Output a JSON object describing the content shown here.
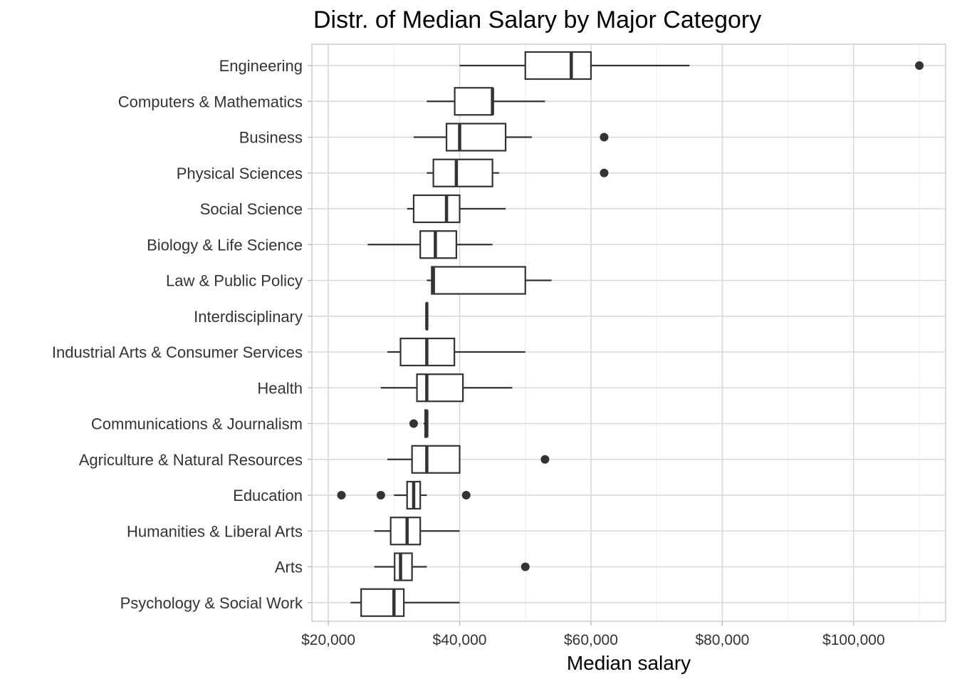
{
  "chart_data": {
    "type": "boxplot",
    "orientation": "horizontal",
    "title": "Distr. of Median Salary by Major Category",
    "xlabel": "Median salary",
    "ylabel": "",
    "xlim": [
      17500,
      114000
    ],
    "x_ticks": [
      20000,
      40000,
      60000,
      80000,
      100000
    ],
    "x_tick_labels": [
      "$20,000",
      "$40,000",
      "$60,000",
      "$80,000",
      "$100,000"
    ],
    "grid": true,
    "legend": "none",
    "colors": {
      "box": "#333333",
      "fill": "#ffffff",
      "grid": "#d9d9d9",
      "panel_border": "#b3b3b3"
    },
    "categories": [
      "Engineering",
      "Computers & Mathematics",
      "Business",
      "Physical Sciences",
      "Social Science",
      "Biology & Life Science",
      "Law & Public Policy",
      "Interdisciplinary",
      "Industrial Arts & Consumer Services",
      "Health",
      "Communications & Journalism",
      "Agriculture & Natural Resources",
      "Education",
      "Humanities & Liberal Arts",
      "Arts",
      "Psychology & Social Work"
    ],
    "boxes": [
      {
        "category": "Engineering",
        "whisker_low": 40000,
        "q1": 50000,
        "median": 57000,
        "q3": 60000,
        "whisker_high": 75000,
        "outliers": [
          110000
        ]
      },
      {
        "category": "Computers & Mathematics",
        "whisker_low": 35000,
        "q1": 39250,
        "median": 45000,
        "q3": 45000,
        "whisker_high": 53000,
        "outliers": []
      },
      {
        "category": "Business",
        "whisker_low": 33000,
        "q1": 38000,
        "median": 40000,
        "q3": 47000,
        "whisker_high": 51000,
        "outliers": [
          62000
        ]
      },
      {
        "category": "Physical Sciences",
        "whisker_low": 35000,
        "q1": 36000,
        "median": 39500,
        "q3": 45000,
        "whisker_high": 46000,
        "outliers": [
          62000
        ]
      },
      {
        "category": "Social Science",
        "whisker_low": 32000,
        "q1": 33000,
        "median": 38000,
        "q3": 40000,
        "whisker_high": 47000,
        "outliers": []
      },
      {
        "category": "Biology & Life Science",
        "whisker_low": 26000,
        "q1": 34000,
        "median": 36300,
        "q3": 39500,
        "whisker_high": 45000,
        "outliers": []
      },
      {
        "category": "Law & Public Policy",
        "whisker_low": 35000,
        "q1": 35750,
        "median": 36000,
        "q3": 50000,
        "whisker_high": 54000,
        "outliers": []
      },
      {
        "category": "Interdisciplinary",
        "whisker_low": 35000,
        "q1": 35000,
        "median": 35000,
        "q3": 35000,
        "whisker_high": 35000,
        "outliers": []
      },
      {
        "category": "Industrial Arts & Consumer Services",
        "whisker_low": 29000,
        "q1": 31000,
        "median": 35000,
        "q3": 39200,
        "whisker_high": 50000,
        "outliers": []
      },
      {
        "category": "Health",
        "whisker_low": 28000,
        "q1": 33500,
        "median": 35000,
        "q3": 40500,
        "whisker_high": 48000,
        "outliers": []
      },
      {
        "category": "Communications & Journalism",
        "whisker_low": 34500,
        "q1": 34750,
        "median": 35000,
        "q3": 35000,
        "whisker_high": 35000,
        "outliers": [
          33000
        ]
      },
      {
        "category": "Agriculture & Natural Resources",
        "whisker_low": 29000,
        "q1": 32750,
        "median": 35000,
        "q3": 40000,
        "whisker_high": 40000,
        "outliers": [
          53000
        ]
      },
      {
        "category": "Education",
        "whisker_low": 30000,
        "q1": 32000,
        "median": 33000,
        "q3": 34000,
        "whisker_high": 35000,
        "outliers": [
          22000,
          28000,
          41000
        ]
      },
      {
        "category": "Humanities & Liberal Arts",
        "whisker_low": 27000,
        "q1": 29500,
        "median": 32000,
        "q3": 34000,
        "whisker_high": 40000,
        "outliers": []
      },
      {
        "category": "Arts",
        "whisker_low": 27000,
        "q1": 30100,
        "median": 31000,
        "q3": 32750,
        "whisker_high": 35000,
        "outliers": [
          50000
        ]
      },
      {
        "category": "Psychology & Social Work",
        "whisker_low": 23400,
        "q1": 25000,
        "median": 30000,
        "q3": 31500,
        "whisker_high": 40000,
        "outliers": []
      }
    ]
  }
}
